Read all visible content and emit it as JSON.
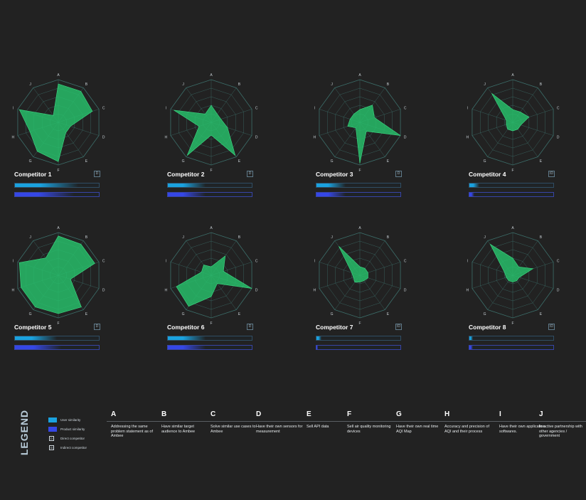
{
  "chart_data": {
    "type": "radar",
    "axes": [
      "A",
      "B",
      "C",
      "D",
      "E",
      "F",
      "G",
      "H",
      "I",
      "J"
    ],
    "range": [
      0,
      5
    ],
    "rings": 5,
    "competitors": [
      {
        "name": "Competitor 1",
        "badge": "D",
        "user_similarity": 0.75,
        "product_similarity": 0.7,
        "values": [
          4.5,
          4.5,
          4.2,
          1.5,
          1.5,
          4.6,
          4.2,
          3.5,
          4.8,
          1.0
        ]
      },
      {
        "name": "Competitor 2",
        "badge": "D",
        "user_similarity": 0.45,
        "product_similarity": 0.45,
        "values": [
          2.0,
          1.2,
          1.2,
          2.0,
          4.8,
          1.5,
          4.8,
          1.5,
          4.6,
          1.2
        ]
      },
      {
        "name": "Competitor 3",
        "badge": "D",
        "user_similarity": 0.35,
        "product_similarity": 0.35,
        "values": [
          1.5,
          2.5,
          1.8,
          5.0,
          1.3,
          4.8,
          0.8,
          1.5,
          1.2,
          1.2
        ]
      },
      {
        "name": "Competitor 4",
        "badge": "ID",
        "user_similarity": 0.12,
        "product_similarity": 0.06,
        "values": [
          1.5,
          1.5,
          2.0,
          1.0,
          1.0,
          1.0,
          1.0,
          0.8,
          0.8,
          4.2
        ]
      },
      {
        "name": "Competitor 5",
        "badge": "D",
        "user_similarity": 0.5,
        "product_similarity": 0.55,
        "values": [
          4.6,
          4.5,
          4.5,
          1.5,
          4.6,
          4.5,
          4.6,
          4.6,
          4.8,
          2.5
        ]
      },
      {
        "name": "Competitor 6",
        "badge": "D",
        "user_similarity": 0.45,
        "product_similarity": 0.45,
        "values": [
          1.0,
          2.8,
          1.5,
          5.0,
          1.2,
          2.5,
          4.5,
          4.3,
          1.2,
          1.5
        ]
      },
      {
        "name": "Competitor 7",
        "badge": "ID",
        "user_similarity": 0.06,
        "product_similarity": 0.02,
        "values": [
          1.0,
          1.0,
          1.0,
          1.0,
          0.8,
          0.8,
          1.0,
          0.8,
          1.0,
          4.2
        ]
      },
      {
        "name": "Competitor 8",
        "badge": "ID",
        "user_similarity": 0.04,
        "product_similarity": 0.04,
        "values": [
          2.0,
          1.2,
          2.5,
          0.8,
          0.8,
          0.8,
          0.8,
          0.8,
          1.0,
          4.5
        ]
      }
    ]
  },
  "legend": {
    "title": "LEGEND",
    "items": [
      {
        "kind": "swatch",
        "color": "#1aa2df",
        "label": "User similarity"
      },
      {
        "kind": "swatch",
        "color": "#3547e6",
        "label": "Product similarity"
      },
      {
        "kind": "box",
        "box_text": "D",
        "label": "Direct competitor"
      },
      {
        "kind": "box",
        "box_text": "ID",
        "label": "Indirect competitor"
      }
    ],
    "criteria": [
      {
        "letter": "A",
        "desc": "Addressing the same problem statement as of Ambee"
      },
      {
        "letter": "B",
        "desc": "Have similar target audience to Ambee"
      },
      {
        "letter": "C",
        "desc": "Solve similar use cases to Ambee"
      },
      {
        "letter": "D",
        "desc": "Have their own sensors for measurement"
      },
      {
        "letter": "E",
        "desc": "Sell API data"
      },
      {
        "letter": "F",
        "desc": "Sell air quality monitoring devices"
      },
      {
        "letter": "G",
        "desc": "Have their own real time AQI Map"
      },
      {
        "letter": "H",
        "desc": "Accuracy and precision of AQI and their process"
      },
      {
        "letter": "I",
        "desc": "Have their own application softwares."
      },
      {
        "letter": "J",
        "desc": "In active partnership with other agencies / government"
      }
    ]
  },
  "colors": {
    "fill": "#27c26b",
    "grid": "#3c6e6a",
    "user": "#1aa2df",
    "product": "#3547e6"
  }
}
